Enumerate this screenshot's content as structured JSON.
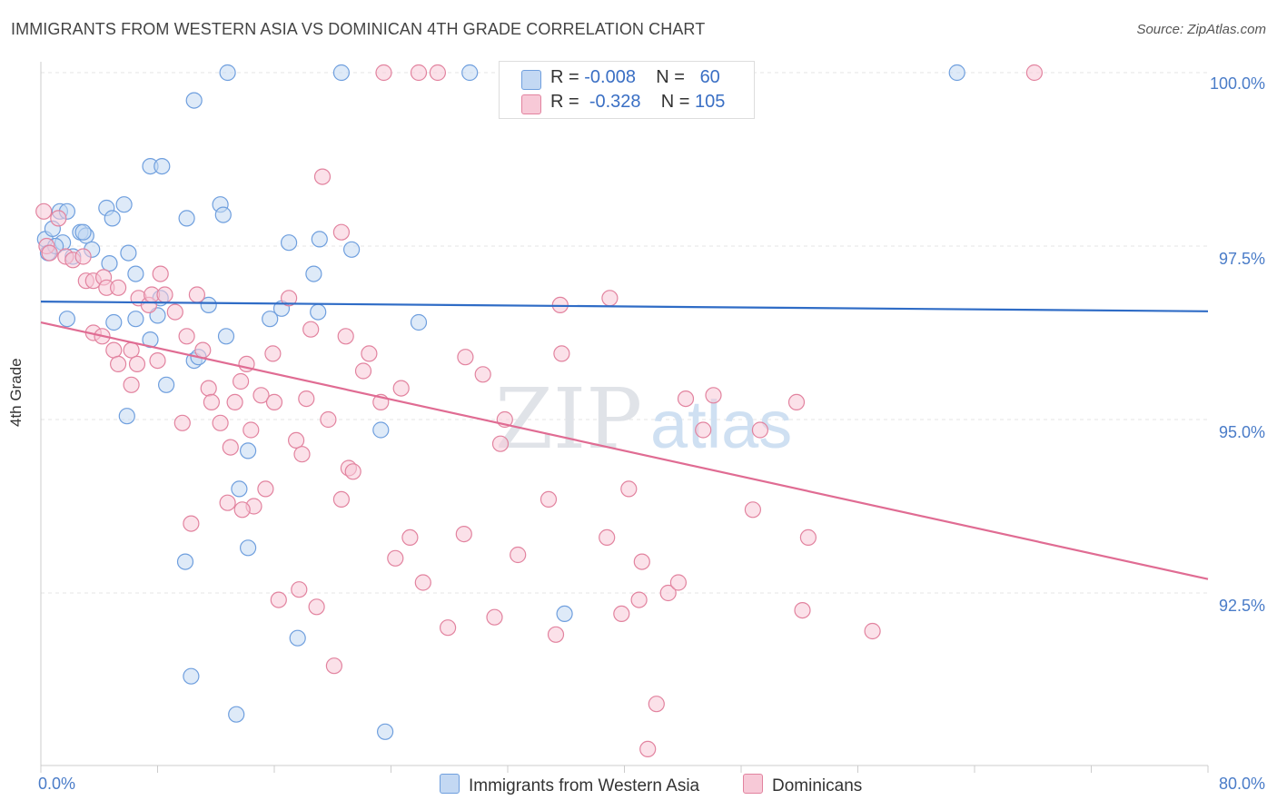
{
  "title": "IMMIGRANTS FROM WESTERN ASIA VS DOMINICAN 4TH GRADE CORRELATION CHART",
  "source": "Source: ZipAtlas.com",
  "watermark": {
    "zip": "ZIP",
    "atlas": "atlas"
  },
  "legend_top": {
    "r_label": "R =",
    "n_label": "N =",
    "rows": [
      {
        "r": "-0.008",
        "n": "60",
        "color": "#aac8f0"
      },
      {
        "r": "-0.328",
        "n": "105",
        "color": "#f5b8cc"
      }
    ]
  },
  "chart_data": {
    "type": "scatter",
    "title": "IMMIGRANTS FROM WESTERN ASIA VS DOMINICAN 4TH GRADE CORRELATION CHART",
    "xlabel": "",
    "ylabel": "4th Grade",
    "xlim": [
      0,
      80
    ],
    "ylim": [
      90.0,
      100.4
    ],
    "x_tick_labels": [
      "0.0%",
      "80.0%"
    ],
    "y_ticks": [
      {
        "value": 100.0,
        "label": "100.0%"
      },
      {
        "value": 97.5,
        "label": "97.5%"
      },
      {
        "value": 95.0,
        "label": "95.0%"
      },
      {
        "value": 92.5,
        "label": "92.5%"
      }
    ],
    "grid": true,
    "legend_placement": "bottom",
    "series": [
      {
        "name": "Immigrants from Western Asia",
        "color": "#6f9fde",
        "fill": "#c3d8f3",
        "trend": {
          "x": [
            0,
            80
          ],
          "y": [
            96.7,
            96.56
          ]
        },
        "points": [
          [
            0.3,
            97.6
          ],
          [
            0.5,
            97.4
          ],
          [
            0.8,
            97.75
          ],
          [
            1.3,
            98.0
          ],
          [
            1.8,
            98.0
          ],
          [
            1.5,
            97.55
          ],
          [
            2.7,
            97.7
          ],
          [
            2.2,
            97.35
          ],
          [
            3.1,
            97.65
          ],
          [
            3.5,
            97.45
          ],
          [
            4.5,
            98.05
          ],
          [
            5.7,
            98.1
          ],
          [
            4.7,
            97.25
          ],
          [
            6.0,
            97.4
          ],
          [
            6.5,
            97.1
          ],
          [
            7.5,
            98.65
          ],
          [
            8.3,
            98.65
          ],
          [
            10.0,
            97.9
          ],
          [
            10.5,
            99.6
          ],
          [
            12.3,
            98.1
          ],
          [
            12.5,
            97.95
          ],
          [
            12.8,
            100.0
          ],
          [
            7.5,
            96.15
          ],
          [
            1.8,
            96.45
          ],
          [
            5.0,
            96.4
          ],
          [
            6.5,
            96.45
          ],
          [
            8.2,
            96.75
          ],
          [
            10.5,
            95.85
          ],
          [
            10.8,
            95.9
          ],
          [
            11.5,
            96.65
          ],
          [
            12.7,
            96.2
          ],
          [
            8.6,
            95.5
          ],
          [
            5.9,
            95.05
          ],
          [
            14.2,
            94.55
          ],
          [
            13.6,
            94.0
          ],
          [
            15.7,
            96.45
          ],
          [
            16.5,
            96.6
          ],
          [
            17.0,
            97.55
          ],
          [
            19.0,
            96.55
          ],
          [
            19.1,
            97.6
          ],
          [
            18.7,
            97.1
          ],
          [
            21.3,
            97.45
          ],
          [
            20.6,
            100.0
          ],
          [
            29.4,
            100.0
          ],
          [
            34.5,
            100.0
          ],
          [
            47.4,
            100.0
          ],
          [
            62.8,
            100.0
          ],
          [
            25.9,
            96.4
          ],
          [
            23.3,
            94.85
          ],
          [
            14.2,
            93.15
          ],
          [
            9.9,
            92.95
          ],
          [
            10.3,
            91.3
          ],
          [
            13.4,
            90.75
          ],
          [
            17.6,
            91.85
          ],
          [
            23.6,
            90.5
          ],
          [
            35.9,
            92.2
          ],
          [
            4.9,
            97.9
          ],
          [
            2.9,
            97.7
          ],
          [
            1.0,
            97.5
          ],
          [
            8.0,
            96.5
          ]
        ]
      },
      {
        "name": "Dominicans",
        "color": "#e2839f",
        "fill": "#f7c9d7",
        "trend": {
          "x": [
            0,
            80
          ],
          "y": [
            96.4,
            92.7
          ]
        },
        "points": [
          [
            0.2,
            98.0
          ],
          [
            0.4,
            97.5
          ],
          [
            0.6,
            97.4
          ],
          [
            1.2,
            97.9
          ],
          [
            1.7,
            97.35
          ],
          [
            2.2,
            97.3
          ],
          [
            2.9,
            97.35
          ],
          [
            3.1,
            97.0
          ],
          [
            3.6,
            97.0
          ],
          [
            4.3,
            97.05
          ],
          [
            4.5,
            96.9
          ],
          [
            5.3,
            96.9
          ],
          [
            3.6,
            96.25
          ],
          [
            5.0,
            96.0
          ],
          [
            5.3,
            95.8
          ],
          [
            6.2,
            96.0
          ],
          [
            6.2,
            95.5
          ],
          [
            6.6,
            95.8
          ],
          [
            6.7,
            96.75
          ],
          [
            7.4,
            96.65
          ],
          [
            7.6,
            96.8
          ],
          [
            8.2,
            97.1
          ],
          [
            8.0,
            95.85
          ],
          [
            8.5,
            96.8
          ],
          [
            9.2,
            96.55
          ],
          [
            9.7,
            94.95
          ],
          [
            10.0,
            96.2
          ],
          [
            10.3,
            93.5
          ],
          [
            10.7,
            96.8
          ],
          [
            11.1,
            96.0
          ],
          [
            11.5,
            95.45
          ],
          [
            11.7,
            95.25
          ],
          [
            12.3,
            94.95
          ],
          [
            12.8,
            93.8
          ],
          [
            13.0,
            94.6
          ],
          [
            13.3,
            95.25
          ],
          [
            13.7,
            95.55
          ],
          [
            14.1,
            95.8
          ],
          [
            14.4,
            94.85
          ],
          [
            14.6,
            93.75
          ],
          [
            15.1,
            95.35
          ],
          [
            15.4,
            94.0
          ],
          [
            15.9,
            95.95
          ],
          [
            16.0,
            95.25
          ],
          [
            16.3,
            92.4
          ],
          [
            17.0,
            96.75
          ],
          [
            17.5,
            94.7
          ],
          [
            17.7,
            92.55
          ],
          [
            17.9,
            94.5
          ],
          [
            18.2,
            95.3
          ],
          [
            18.5,
            96.3
          ],
          [
            18.9,
            92.3
          ],
          [
            19.3,
            98.5
          ],
          [
            19.7,
            95.0
          ],
          [
            20.1,
            91.45
          ],
          [
            20.6,
            93.85
          ],
          [
            20.9,
            96.2
          ],
          [
            21.1,
            94.3
          ],
          [
            21.4,
            94.25
          ],
          [
            22.1,
            95.7
          ],
          [
            22.5,
            95.95
          ],
          [
            23.3,
            95.25
          ],
          [
            23.5,
            100.0
          ],
          [
            24.3,
            93.0
          ],
          [
            24.7,
            95.45
          ],
          [
            25.3,
            93.3
          ],
          [
            25.9,
            100.0
          ],
          [
            26.2,
            92.65
          ],
          [
            27.2,
            100.0
          ],
          [
            27.9,
            92.0
          ],
          [
            29.0,
            93.35
          ],
          [
            29.1,
            95.9
          ],
          [
            30.3,
            95.65
          ],
          [
            31.1,
            92.15
          ],
          [
            31.5,
            94.65
          ],
          [
            31.8,
            95.0
          ],
          [
            32.7,
            93.05
          ],
          [
            34.8,
            93.85
          ],
          [
            35.3,
            91.9
          ],
          [
            35.6,
            96.65
          ],
          [
            35.7,
            95.95
          ],
          [
            38.8,
            93.3
          ],
          [
            39.0,
            96.75
          ],
          [
            39.8,
            92.2
          ],
          [
            40.3,
            94.0
          ],
          [
            41.0,
            92.4
          ],
          [
            41.2,
            92.95
          ],
          [
            42.2,
            90.9
          ],
          [
            41.6,
            90.25
          ],
          [
            43.0,
            92.5
          ],
          [
            43.7,
            92.65
          ],
          [
            44.2,
            95.3
          ],
          [
            45.4,
            94.85
          ],
          [
            46.1,
            95.35
          ],
          [
            48.8,
            93.7
          ],
          [
            49.3,
            94.85
          ],
          [
            51.8,
            95.25
          ],
          [
            52.6,
            93.3
          ],
          [
            52.2,
            92.25
          ],
          [
            57.0,
            91.95
          ],
          [
            68.1,
            100.0
          ],
          [
            36.5,
            100.0
          ],
          [
            13.8,
            93.7
          ],
          [
            20.6,
            97.7
          ],
          [
            4.2,
            96.2
          ]
        ]
      }
    ]
  },
  "legend_bottom": [
    {
      "label": "Immigrants from Western Asia",
      "color": "#aac8f0"
    },
    {
      "label": "Dominicans",
      "color": "#f5b8cc"
    }
  ]
}
